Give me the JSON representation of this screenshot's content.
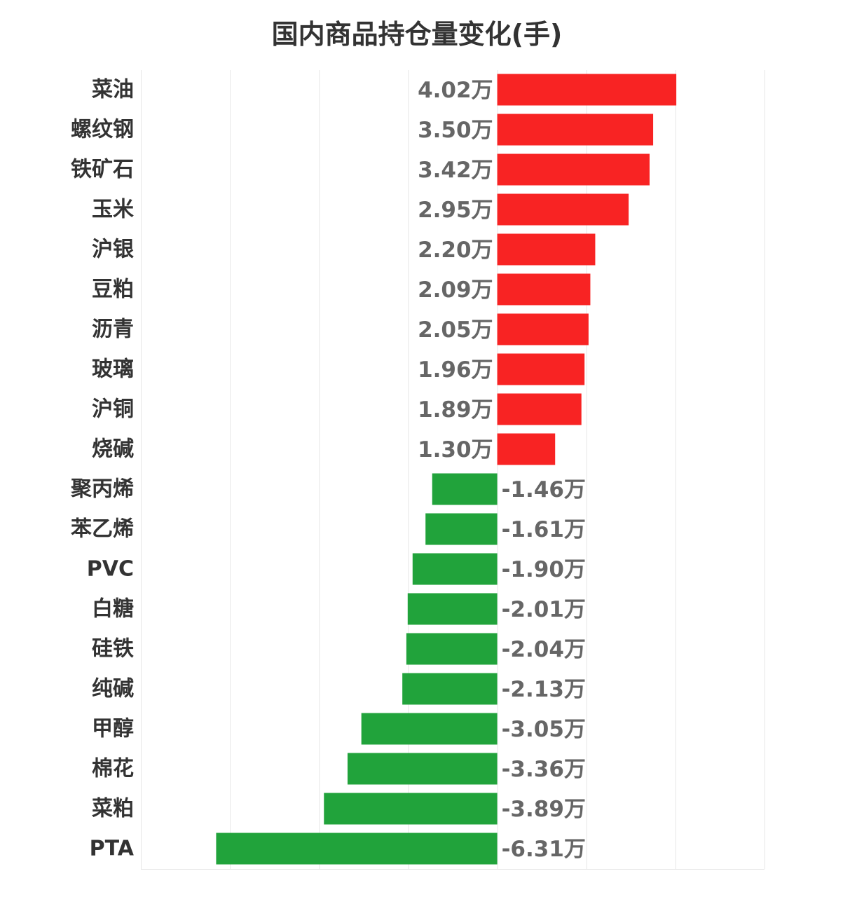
{
  "chart_data": {
    "type": "bar",
    "orientation": "horizontal",
    "title": "国内商品持仓量变化(手)",
    "xlabel": "",
    "ylabel": "",
    "grid": true,
    "legend": "none",
    "categories": [
      "菜油",
      "螺纹钢",
      "铁矿石",
      "玉米",
      "沪银",
      "豆粕",
      "沥青",
      "玻璃",
      "沪铜",
      "烧碱",
      "聚丙烯",
      "苯乙烯",
      "PVC",
      "白糖",
      "硅铁",
      "纯碱",
      "甲醇",
      "棉花",
      "菜粕",
      "PTA"
    ],
    "values": [
      40200,
      35000,
      34200,
      29500,
      22000,
      20900,
      20500,
      19600,
      18900,
      13000,
      -14600,
      -16100,
      -19000,
      -20100,
      -20400,
      -21300,
      -30500,
      -33600,
      -38900,
      -63100
    ],
    "data_labels": [
      "4.02万",
      "3.50万",
      "3.42万",
      "2.95万",
      "2.20万",
      "2.09万",
      "2.05万",
      "1.96万",
      "1.89万",
      "1.30万",
      "-1.46万",
      "-1.61万",
      "-1.90万",
      "-2.01万",
      "-2.04万",
      "-2.13万",
      "-3.05万",
      "-3.36万",
      "-3.89万",
      "-6.31万"
    ],
    "xlim": [
      -80000,
      60000
    ],
    "colors": {
      "positive": "#f82323",
      "negative": "#21a33b",
      "grid": "#e6e6e6"
    }
  }
}
